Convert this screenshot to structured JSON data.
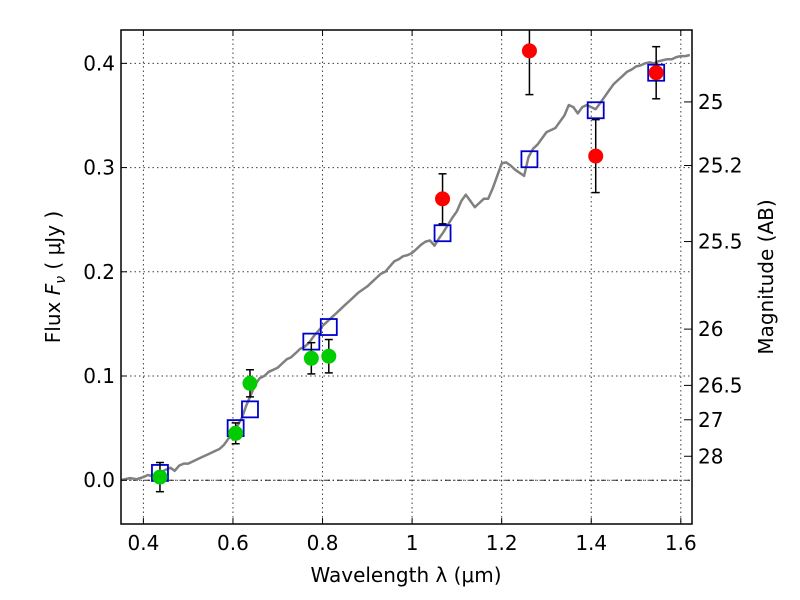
{
  "chart_data": {
    "type": "scatter",
    "xlabel": "Wavelength  λ (μm)",
    "ylabel": "Flux  F_ν  ( μJy )",
    "ylabel_parts": {
      "prefix": "Flux ",
      "symbol": "F",
      "sub": "ν",
      "suffix": " ( μJy )"
    },
    "y2label": "Magnitude (AB)",
    "xlim": [
      0.35,
      1.625
    ],
    "ylim": [
      -0.042,
      0.432
    ],
    "xticks": [
      0.4,
      0.6,
      0.8,
      1.0,
      1.2,
      1.4,
      1.6
    ],
    "xtick_labels": [
      "0.4",
      "0.6",
      "0.8",
      "1",
      "1.2",
      "1.4",
      "1.6"
    ],
    "yticks": [
      0.0,
      0.1,
      0.2,
      0.3,
      0.4
    ],
    "ytick_labels": [
      "0.0",
      "0.1",
      "0.2",
      "0.3",
      "0.4"
    ],
    "y2_ticks": [
      {
        "label": "25",
        "flux": 0.363
      },
      {
        "label": "25.2",
        "flux": 0.302
      },
      {
        "label": "25.5",
        "flux": 0.229
      },
      {
        "label": "26",
        "flux": 0.145
      },
      {
        "label": "26.5",
        "flux": 0.091
      },
      {
        "label": "27",
        "flux": 0.058
      },
      {
        "label": "28",
        "flux": 0.023
      }
    ],
    "grid": true,
    "zero_line": 0.0,
    "colors": {
      "model": "#808080",
      "model_photometry": "#0000cc",
      "optical": "#00cc00",
      "nir": "#ff0000",
      "errorbar": "#000000"
    },
    "series": [
      {
        "marker": "line",
        "points": [
          [
            0.35,
            0.0
          ],
          [
            0.37,
            0.002
          ],
          [
            0.385,
            0.001
          ],
          [
            0.4,
            0.003
          ],
          [
            0.41,
            0.005
          ],
          [
            0.42,
            0.004
          ],
          [
            0.43,
            0.006
          ],
          [
            0.44,
            0.008
          ],
          [
            0.45,
            0.01
          ],
          [
            0.46,
            0.012
          ],
          [
            0.47,
            0.009
          ],
          [
            0.48,
            0.014
          ],
          [
            0.49,
            0.016
          ],
          [
            0.5,
            0.016
          ],
          [
            0.51,
            0.018
          ],
          [
            0.52,
            0.02
          ],
          [
            0.53,
            0.022
          ],
          [
            0.54,
            0.024
          ],
          [
            0.55,
            0.026
          ],
          [
            0.56,
            0.028
          ],
          [
            0.57,
            0.03
          ],
          [
            0.58,
            0.034
          ],
          [
            0.59,
            0.04
          ],
          [
            0.6,
            0.046
          ],
          [
            0.61,
            0.052
          ],
          [
            0.62,
            0.06
          ],
          [
            0.63,
            0.072
          ],
          [
            0.64,
            0.082
          ],
          [
            0.65,
            0.092
          ],
          [
            0.66,
            0.098
          ],
          [
            0.67,
            0.1
          ],
          [
            0.68,
            0.104
          ],
          [
            0.69,
            0.106
          ],
          [
            0.7,
            0.108
          ],
          [
            0.71,
            0.112
          ],
          [
            0.72,
            0.116
          ],
          [
            0.73,
            0.118
          ],
          [
            0.74,
            0.122
          ],
          [
            0.75,
            0.126
          ],
          [
            0.76,
            0.128
          ],
          [
            0.77,
            0.132
          ],
          [
            0.78,
            0.138
          ],
          [
            0.79,
            0.143
          ],
          [
            0.8,
            0.148
          ],
          [
            0.81,
            0.152
          ],
          [
            0.82,
            0.156
          ],
          [
            0.83,
            0.16
          ],
          [
            0.84,
            0.164
          ],
          [
            0.85,
            0.168
          ],
          [
            0.86,
            0.172
          ],
          [
            0.87,
            0.176
          ],
          [
            0.88,
            0.18
          ],
          [
            0.89,
            0.183
          ],
          [
            0.9,
            0.186
          ],
          [
            0.91,
            0.19
          ],
          [
            0.92,
            0.194
          ],
          [
            0.93,
            0.198
          ],
          [
            0.94,
            0.2
          ],
          [
            0.95,
            0.205
          ],
          [
            0.96,
            0.21
          ],
          [
            0.97,
            0.212
          ],
          [
            0.98,
            0.215
          ],
          [
            0.99,
            0.216
          ],
          [
            1.0,
            0.218
          ],
          [
            1.01,
            0.222
          ],
          [
            1.02,
            0.226
          ],
          [
            1.03,
            0.229
          ],
          [
            1.04,
            0.23
          ],
          [
            1.05,
            0.225
          ],
          [
            1.06,
            0.232
          ],
          [
            1.07,
            0.238
          ],
          [
            1.08,
            0.245
          ],
          [
            1.09,
            0.252
          ],
          [
            1.1,
            0.258
          ],
          [
            1.11,
            0.268
          ],
          [
            1.12,
            0.274
          ],
          [
            1.13,
            0.268
          ],
          [
            1.14,
            0.262
          ],
          [
            1.15,
            0.266
          ],
          [
            1.16,
            0.27
          ],
          [
            1.17,
            0.27
          ],
          [
            1.18,
            0.28
          ],
          [
            1.19,
            0.292
          ],
          [
            1.2,
            0.304
          ],
          [
            1.21,
            0.305
          ],
          [
            1.22,
            0.302
          ],
          [
            1.23,
            0.298
          ],
          [
            1.24,
            0.295
          ],
          [
            1.25,
            0.292
          ],
          [
            1.26,
            0.31
          ],
          [
            1.27,
            0.318
          ],
          [
            1.28,
            0.322
          ],
          [
            1.29,
            0.328
          ],
          [
            1.3,
            0.334
          ],
          [
            1.31,
            0.336
          ],
          [
            1.32,
            0.338
          ],
          [
            1.33,
            0.344
          ],
          [
            1.34,
            0.35
          ],
          [
            1.35,
            0.36
          ],
          [
            1.36,
            0.358
          ],
          [
            1.37,
            0.352
          ],
          [
            1.38,
            0.358
          ],
          [
            1.39,
            0.36
          ],
          [
            1.4,
            0.358
          ],
          [
            1.41,
            0.356
          ],
          [
            1.42,
            0.362
          ],
          [
            1.43,
            0.368
          ],
          [
            1.44,
            0.374
          ],
          [
            1.45,
            0.38
          ],
          [
            1.46,
            0.384
          ],
          [
            1.47,
            0.388
          ],
          [
            1.48,
            0.392
          ],
          [
            1.49,
            0.394
          ],
          [
            1.5,
            0.397
          ],
          [
            1.51,
            0.398
          ],
          [
            1.52,
            0.4
          ],
          [
            1.53,
            0.401
          ],
          [
            1.54,
            0.4
          ],
          [
            1.55,
            0.402
          ],
          [
            1.56,
            0.403
          ],
          [
            1.57,
            0.404
          ],
          [
            1.58,
            0.404
          ],
          [
            1.59,
            0.406
          ],
          [
            1.6,
            0.407
          ],
          [
            1.61,
            0.407
          ],
          [
            1.62,
            0.408
          ]
        ]
      },
      {
        "marker": "square",
        "points": [
          [
            0.437,
            0.007
          ],
          [
            0.606,
            0.05
          ],
          [
            0.638,
            0.068
          ],
          [
            0.775,
            0.133
          ],
          [
            0.814,
            0.147
          ],
          [
            1.068,
            0.237
          ],
          [
            1.262,
            0.308
          ],
          [
            1.41,
            0.355
          ],
          [
            1.545,
            0.391
          ]
        ]
      },
      {
        "marker": "circle",
        "points": [
          {
            "x": 0.437,
            "y": 0.003,
            "err": 0.014
          },
          {
            "x": 0.606,
            "y": 0.045,
            "err": 0.01
          },
          {
            "x": 0.638,
            "y": 0.093,
            "err": 0.013
          },
          {
            "x": 0.775,
            "y": 0.117,
            "err": 0.015
          },
          {
            "x": 0.814,
            "y": 0.119,
            "err": 0.016
          }
        ]
      },
      {
        "marker": "circle",
        "points": [
          {
            "x": 1.068,
            "y": 0.27,
            "err": 0.024
          },
          {
            "x": 1.262,
            "y": 0.412,
            "err": 0.042
          },
          {
            "x": 1.41,
            "y": 0.311,
            "err": 0.035
          },
          {
            "x": 1.545,
            "y": 0.391,
            "err": 0.025
          }
        ]
      }
    ]
  }
}
